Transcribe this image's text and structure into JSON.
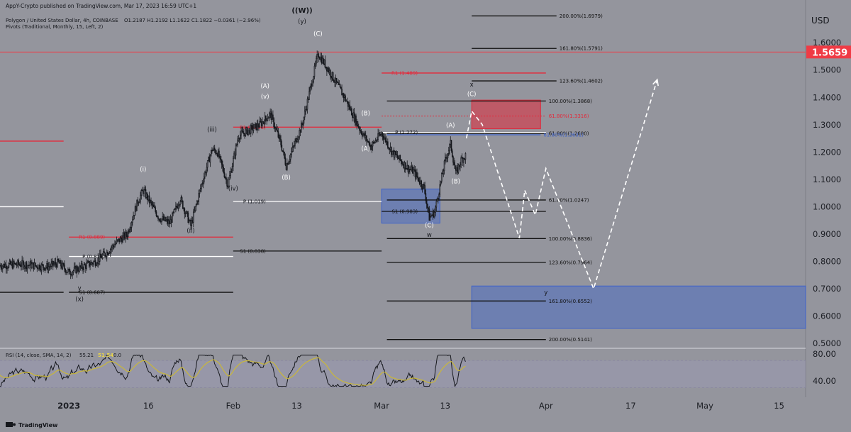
{
  "header": {
    "published": "AppY-Crypto published on TradingView.com, Mar 17, 2023 16:59 UTC+1",
    "symbol_line": "Polygon / United States Dollar, 4h, COINBASE",
    "ohlc": "O1.2187  H1.2192  L1.1622  C1.1822  −0.0361 (−2.96%)",
    "pivots_line": "Pivots (Traditional, Monthly, 15, Left, 2)"
  },
  "footer": {
    "brand": "TradingView"
  },
  "colors": {
    "background": "#94959d",
    "candle": "#15171c",
    "red_level": "#e5283a",
    "white_level": "#ffffff",
    "black_level": "#111111",
    "blue_zone": "#3f63c9",
    "red_zone": "#e0293b",
    "price_tag": "#ef3b45",
    "rsi_line": "#15171c",
    "rsi_ma": "#c9b73a",
    "rsi_band": "#9c98b5"
  },
  "chart_data": {
    "type": "candlestick",
    "currency_label": "USD",
    "price_axis_ticks": [
      "1.6000",
      "1.5000",
      "1.4000",
      "1.3000",
      "1.2000",
      "1.1000",
      "1.0000",
      "0.9000",
      "0.8000",
      "0.7000",
      "0.6000",
      "0.5000"
    ],
    "price_axis_tick_values": [
      1.6,
      1.5,
      1.4,
      1.3,
      1.2,
      1.1,
      1.0,
      0.9,
      0.8,
      0.7,
      0.6,
      0.5
    ],
    "ylim": [
      0.49,
      1.725
    ],
    "x_axis_labels": [
      "2023",
      "16",
      "Feb",
      "13",
      "Mar",
      "13",
      "Apr",
      "17",
      "May",
      "15"
    ],
    "x_axis_label_dates": [
      "2023-01-01",
      "2023-01-16",
      "2023-02-01",
      "2023-02-13",
      "2023-03-01",
      "2023-03-13",
      "2023-04-01",
      "2023-04-17",
      "2023-05-01",
      "2023-05-15"
    ],
    "xlim": [
      "2022-12-19",
      "2023-05-20"
    ],
    "current_price": {
      "label": "1.5659",
      "value": 1.5659
    },
    "price_path": [
      [
        "2022-12-19",
        0.785
      ],
      [
        "2022-12-23",
        0.79
      ],
      [
        "2022-12-28",
        0.78
      ],
      [
        "2022-12-30",
        0.795
      ],
      [
        "2023-01-01",
        0.76
      ],
      [
        "2023-01-03",
        0.775
      ],
      [
        "2023-01-06",
        0.8
      ],
      [
        "2023-01-08",
        0.83
      ],
      [
        "2023-01-10",
        0.87
      ],
      [
        "2023-01-12",
        0.9
      ],
      [
        "2023-01-14",
        1.02
      ],
      [
        "2023-01-15",
        1.06
      ],
      [
        "2023-01-18",
        0.96
      ],
      [
        "2023-01-20",
        0.94
      ],
      [
        "2023-01-22",
        1.03
      ],
      [
        "2023-01-24",
        0.93
      ],
      [
        "2023-01-26",
        1.08
      ],
      [
        "2023-01-28",
        1.21
      ],
      [
        "2023-01-29",
        1.2
      ],
      [
        "2023-01-31",
        1.08
      ],
      [
        "2023-02-02",
        1.26
      ],
      [
        "2023-02-06",
        1.3
      ],
      [
        "2023-02-08",
        1.34
      ],
      [
        "2023-02-10",
        1.23
      ],
      [
        "2023-02-11",
        1.15
      ],
      [
        "2023-02-14",
        1.3
      ],
      [
        "2023-02-16",
        1.47
      ],
      [
        "2023-02-17",
        1.56
      ],
      [
        "2023-02-19",
        1.5
      ],
      [
        "2023-02-22",
        1.4
      ],
      [
        "2023-02-24",
        1.32
      ],
      [
        "2023-02-25",
        1.28
      ],
      [
        "2023-02-27",
        1.22
      ],
      [
        "2023-03-01",
        1.27
      ],
      [
        "2023-03-03",
        1.2
      ],
      [
        "2023-03-06",
        1.14
      ],
      [
        "2023-03-07",
        1.13
      ],
      [
        "2023-03-09",
        1.07
      ],
      [
        "2023-03-10",
        0.96
      ],
      [
        "2023-03-11",
        0.98
      ],
      [
        "2023-03-13",
        1.17
      ],
      [
        "2023-03-14",
        1.23
      ],
      [
        "2023-03-15",
        1.12
      ],
      [
        "2023-03-16",
        1.17
      ],
      [
        "2023-03-17",
        1.19
      ]
    ],
    "rsi": {
      "label": "RSI (14, close, SMA, 14, 2)",
      "value": "55.21",
      "ma_value": "51.54",
      "divergence_value": "0.0",
      "axis_ticks": [
        "80.00",
        "40.00"
      ],
      "axis_tick_values": [
        80,
        40
      ],
      "ylim": [
        20,
        85
      ],
      "upper_band": 70,
      "lower_band": 30
    },
    "horizontal_levels": [
      {
        "id": "r1-jan",
        "label": "R1 (0.889)",
        "value": 0.889,
        "color": "red",
        "from": "2023-01-01",
        "to": "2023-02-01"
      },
      {
        "id": "p-jan",
        "label": "P (0.818)",
        "value": 0.818,
        "color": "white",
        "from": "2023-01-01",
        "to": "2023-02-01"
      },
      {
        "id": "s1-jan",
        "label": "S1 (0.687)",
        "value": 0.687,
        "color": "black",
        "from": "2023-01-01",
        "to": "2023-02-01"
      },
      {
        "id": "red-dec",
        "label": "",
        "value": 1.24,
        "color": "red",
        "from": "2022-12-19",
        "to": "2022-12-31"
      },
      {
        "id": "white-dec",
        "label": "",
        "value": 1.0,
        "color": "white",
        "from": "2022-12-19",
        "to": "2022-12-31"
      },
      {
        "id": "black-dec",
        "label": "",
        "value": 0.687,
        "color": "black",
        "from": "2022-12-19",
        "to": "2022-12-31"
      },
      {
        "id": "r1-feb",
        "label": "R1 (1.291)",
        "value": 1.291,
        "color": "red",
        "from": "2023-02-01",
        "to": "2023-03-01"
      },
      {
        "id": "p-feb",
        "label": "P (1.019)",
        "value": 1.019,
        "color": "white",
        "from": "2023-02-01",
        "to": "2023-03-01"
      },
      {
        "id": "s1-feb",
        "label": "S1 (0.838)",
        "value": 0.838,
        "color": "black",
        "from": "2023-02-01",
        "to": "2023-03-01"
      },
      {
        "id": "r1-mar",
        "label": "R1 (1.489)",
        "value": 1.489,
        "color": "red",
        "from": "2023-03-01",
        "to": "2023-04-01"
      },
      {
        "id": "p-mar",
        "label": "P (1.272)",
        "value": 1.272,
        "color": "white",
        "from": "2023-03-01",
        "to": "2023-04-01"
      },
      {
        "id": "s1-mar",
        "label": "S1 (0.983)",
        "value": 0.983,
        "color": "black",
        "from": "2023-03-01",
        "to": "2023-04-01"
      }
    ],
    "fib_levels": [
      {
        "label": "200.00%(1.6979)",
        "value": 1.6979,
        "color": "black"
      },
      {
        "label": "161.80%(1.5791)",
        "value": 1.5791,
        "color": "black"
      },
      {
        "label": "123.60%(1.4602)",
        "value": 1.4602,
        "color": "black"
      },
      {
        "label": "100.00%(1.3868)",
        "value": 1.3868,
        "color": "black"
      },
      {
        "label": "61.80%(1.3316)",
        "value": 1.3316,
        "color": "red"
      },
      {
        "label": "61.80%(1.2680)",
        "value": 1.268,
        "color": "black"
      },
      {
        "label": "61.80%(1.2631)",
        "value": 1.2631,
        "color": "blue"
      },
      {
        "label": "61.80%(1.0247)",
        "value": 1.0247,
        "color": "black"
      },
      {
        "label": "100.00%(0.8836)",
        "value": 0.8836,
        "color": "black"
      },
      {
        "label": "123.60%(0.7964)",
        "value": 0.7964,
        "color": "black"
      },
      {
        "label": "161.80%(0.6552)",
        "value": 0.6552,
        "color": "black"
      },
      {
        "label": "200.00%(0.5141)",
        "value": 0.5141,
        "color": "black"
      }
    ],
    "zones": [
      {
        "id": "red-zone",
        "type": "red",
        "from": "2023-03-18",
        "to": "2023-03-31",
        "top": 1.39,
        "bottom": 1.285
      },
      {
        "id": "blue-zone-1",
        "type": "blue",
        "from": "2023-03-01",
        "to": "2023-03-12",
        "top": 1.065,
        "bottom": 0.94
      },
      {
        "id": "blue-zone-2",
        "type": "blue",
        "from": "2023-03-18",
        "to": "2023-05-20",
        "top": 0.71,
        "bottom": 0.555
      }
    ],
    "wave_labels": [
      {
        "text": "((W))",
        "date": "2023-02-14",
        "value": 1.71
      },
      {
        "text": "(y)",
        "date": "2023-02-14",
        "value": 1.67
      },
      {
        "text": "(C)",
        "date": "2023-02-17",
        "value": 1.625
      },
      {
        "text": "(A)",
        "date": "2023-02-07",
        "value": 1.435
      },
      {
        "text": "(v)",
        "date": "2023-02-07",
        "value": 1.395
      },
      {
        "text": "(B)",
        "date": "2023-02-11",
        "value": 1.1
      },
      {
        "text": "(iii)",
        "date": "2023-01-28",
        "value": 1.275
      },
      {
        "text": "(i)",
        "date": "2023-01-15",
        "value": 1.13
      },
      {
        "text": "(iv)",
        "date": "2023-02-01",
        "value": 1.06
      },
      {
        "text": "(ii)",
        "date": "2023-01-24",
        "value": 0.905
      },
      {
        "text": "y",
        "date": "2023-01-03",
        "value": 0.695
      },
      {
        "text": "(x)",
        "date": "2023-01-03",
        "value": 0.655
      },
      {
        "text": "(B)",
        "date": "2023-02-26",
        "value": 1.335
      },
      {
        "text": "(A)",
        "date": "2023-02-26",
        "value": 1.205
      },
      {
        "text": "(A)",
        "date": "2023-03-14",
        "value": 1.29
      },
      {
        "text": "(B)",
        "date": "2023-03-15",
        "value": 1.085
      },
      {
        "text": "(C)",
        "date": "2023-03-10",
        "value": 0.925
      },
      {
        "text": "w",
        "date": "2023-03-10",
        "value": 0.89
      },
      {
        "text": "x",
        "date": "2023-03-18",
        "value": 1.44
      },
      {
        "text": "(C)",
        "date": "2023-03-18",
        "value": 1.405
      },
      {
        "text": "y",
        "date": "2023-04-01",
        "value": 0.68
      }
    ],
    "projection_path": [
      [
        "2023-03-17",
        1.25
      ],
      [
        "2023-03-18",
        1.35
      ],
      [
        "2023-03-20",
        1.3
      ],
      [
        "2023-03-27",
        0.885
      ],
      [
        "2023-03-28",
        1.06
      ],
      [
        "2023-03-30",
        0.97
      ],
      [
        "2023-04-01",
        1.14
      ],
      [
        "2023-04-10",
        0.7
      ],
      [
        "2023-04-22",
        1.465
      ]
    ]
  }
}
